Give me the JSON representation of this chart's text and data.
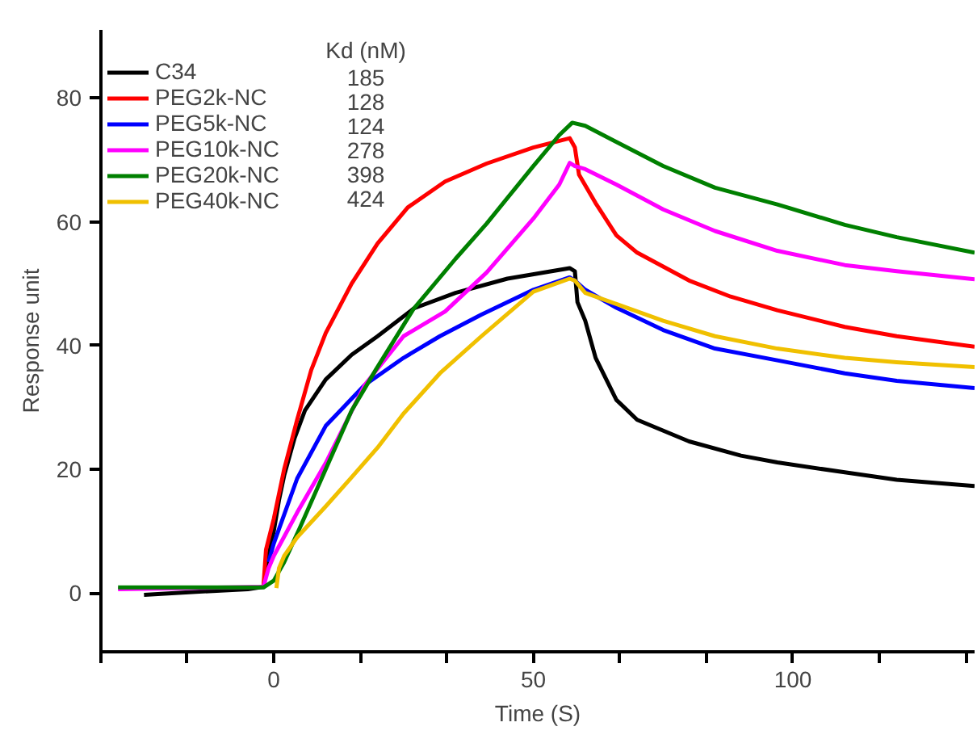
{
  "chart_data": {
    "type": "line",
    "xlabel": "Time (S)",
    "ylabel": "Response unit",
    "legend": "top left",
    "legend_title": "Kd (nM)",
    "annotations": [
      "185",
      "128",
      "124",
      "278",
      "398",
      "424"
    ],
    "xlim": [
      -33.3,
      135
    ],
    "ylim": [
      -9.5,
      91
    ],
    "xticks": [
      {
        "value": -33.3,
        "label": null
      },
      {
        "value": -16.7,
        "label": null
      },
      0,
      {
        "value": 16.7,
        "label": null
      },
      {
        "value": 33.3,
        "label": null
      },
      50,
      {
        "value": 66.7,
        "label": null
      },
      {
        "value": 83.3,
        "label": null
      },
      100,
      {
        "value": 116.7,
        "label": null
      },
      {
        "value": 133.3,
        "label": null
      }
    ],
    "yticks": [
      0,
      20,
      40,
      60,
      80
    ],
    "series": [
      {
        "name": "C34",
        "color": "#000000",
        "x": [
          -25,
          -15,
          -5,
          -2,
          -1,
          0,
          1,
          2,
          4,
          6,
          10,
          15,
          20,
          27,
          35,
          45,
          57,
          58,
          58.5,
          60,
          62,
          66,
          70,
          80,
          90,
          97,
          110,
          120,
          135
        ],
        "values": [
          -0.3,
          0.2,
          0.6,
          1,
          6,
          10,
          15,
          19,
          25,
          29.5,
          34.5,
          38.5,
          41.5,
          46,
          48.5,
          50.8,
          52.5,
          52,
          47,
          44,
          38,
          31.2,
          28,
          24.5,
          22.2,
          21.1,
          19.5,
          18.3,
          17.3
        ]
      },
      {
        "name": "PEG2k-NC",
        "color": "#ff0000",
        "x": [
          -2,
          -1.5,
          0,
          2,
          4.5,
          7.2,
          10,
          15,
          20,
          25.8,
          33,
          41,
          50,
          57,
          58,
          58.8,
          62,
          66,
          70,
          80,
          88,
          97,
          110,
          120,
          135
        ],
        "values": [
          1,
          7,
          12,
          20,
          28,
          36,
          42,
          50,
          56.5,
          62.3,
          66.5,
          69.4,
          72,
          73.5,
          72,
          67.6,
          63,
          57.8,
          55,
          50.5,
          47.9,
          45.7,
          43,
          41.5,
          39.8
        ]
      },
      {
        "name": "PEG5k-NC",
        "color": "#0000ff",
        "x": [
          -1,
          0,
          4.5,
          10,
          17.5,
          25,
          32,
          40,
          50,
          57,
          58,
          60,
          66,
          75,
          85,
          97,
          110,
          120,
          135
        ],
        "values": [
          5,
          8,
          18.5,
          27,
          33.6,
          38,
          41.5,
          45,
          49,
          51,
          50.5,
          49,
          46.1,
          42.5,
          39.5,
          37.6,
          35.5,
          34.3,
          33.1
        ]
      },
      {
        "name": "PEG10k-NC",
        "color": "#ff00ff",
        "x": [
          -30,
          -2,
          -1,
          0,
          4.5,
          10,
          17.5,
          25,
          33,
          41,
          50,
          55,
          57,
          58,
          60,
          66,
          75,
          85,
          97,
          110,
          120,
          135
        ],
        "values": [
          0.6,
          1,
          4,
          6,
          13,
          21,
          33.6,
          41.5,
          45.5,
          51.8,
          60.5,
          66,
          69.5,
          69,
          68.5,
          66,
          62,
          58.5,
          55.3,
          53,
          52,
          50.7
        ]
      },
      {
        "name": "PEG20k-NC",
        "color": "#008000",
        "x": [
          -30,
          -2,
          0,
          2,
          5,
          10,
          15,
          19.6,
          27,
          35,
          41,
          50,
          55,
          57.5,
          60,
          66,
          75,
          85,
          97,
          110,
          120,
          135
        ],
        "values": [
          0.9,
          0.9,
          2,
          5,
          10.5,
          20,
          29.5,
          36,
          46,
          54,
          59.7,
          69,
          74,
          76,
          75.5,
          72.9,
          69,
          65.5,
          62.8,
          59.5,
          57.5,
          55
        ]
      },
      {
        "name": "PEG40k-NC",
        "color": "#f0c000",
        "x": [
          0.5,
          1,
          2,
          4.5,
          10,
          15,
          20,
          25,
          32,
          40,
          50,
          57,
          58,
          60,
          66,
          75,
          85,
          97,
          110,
          120,
          135
        ],
        "values": [
          0.8,
          4,
          6,
          9,
          14,
          18.7,
          23.5,
          29,
          35.5,
          41.5,
          48.7,
          50.8,
          50.5,
          48.5,
          46.7,
          44,
          41.5,
          39.5,
          38,
          37.3,
          36.5
        ]
      }
    ]
  }
}
